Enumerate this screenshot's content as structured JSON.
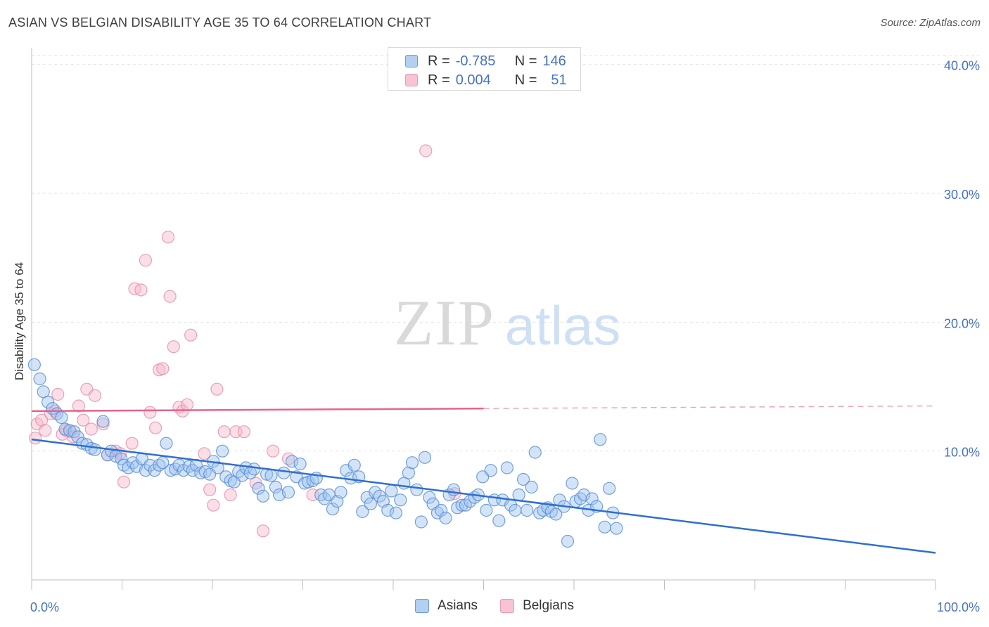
{
  "header": {
    "title": "ASIAN VS BELGIAN DISABILITY AGE 35 TO 64 CORRELATION CHART",
    "source": "Source: ZipAtlas.com"
  },
  "watermark": {
    "zip": "ZIP",
    "atlas": "atlas"
  },
  "legend_top": {
    "r_label": "R =",
    "n_label": "N =",
    "rows": [
      {
        "r": "-0.785",
        "n": "146"
      },
      {
        "r": "0.004",
        "n": "51"
      }
    ]
  },
  "colors": {
    "asian_fill": "#9fc3ef",
    "asian_stroke": "#5b8fd6",
    "asian_line": "#2f6fce",
    "belgian_fill": "#f6b8ca",
    "belgian_stroke": "#e890ab",
    "belgian_line": "#e5648e",
    "tick_label": "#4472c4"
  },
  "chart_data": {
    "type": "scatter",
    "title": "ASIAN VS BELGIAN DISABILITY AGE 35 TO 64 CORRELATION CHART",
    "xlabel": "",
    "ylabel": "Disability Age 35 to 64",
    "xlim": [
      0,
      100
    ],
    "ylim": [
      0,
      42
    ],
    "x_tick_labels": [
      "0.0%",
      "100.0%"
    ],
    "y_ticks": [
      10,
      20,
      30,
      40
    ],
    "y_tick_labels": [
      "10.0%",
      "20.0%",
      "30.0%",
      "40.0%"
    ],
    "grid": true,
    "legend_position": "bottom",
    "series": [
      {
        "name": "Asians",
        "r": -0.785,
        "n": 146,
        "trend": {
          "x": [
            0,
            100
          ],
          "y": [
            10.9,
            2.1
          ],
          "dashed_from": null
        },
        "points": [
          [
            0.3,
            16.7
          ],
          [
            0.9,
            15.6
          ],
          [
            1.3,
            14.6
          ],
          [
            1.8,
            13.8
          ],
          [
            2.3,
            13.3
          ],
          [
            2.8,
            12.9
          ],
          [
            3.3,
            12.6
          ],
          [
            3.7,
            11.7
          ],
          [
            4.2,
            11.6
          ],
          [
            4.7,
            11.5
          ],
          [
            5.1,
            11.1
          ],
          [
            5.6,
            10.6
          ],
          [
            6.1,
            10.5
          ],
          [
            6.6,
            10.2
          ],
          [
            7.0,
            10.1
          ],
          [
            7.9,
            12.3
          ],
          [
            8.4,
            9.7
          ],
          [
            8.8,
            10.0
          ],
          [
            9.3,
            9.6
          ],
          [
            9.9,
            9.4
          ],
          [
            10.2,
            8.9
          ],
          [
            10.7,
            8.7
          ],
          [
            11.2,
            9.1
          ],
          [
            11.6,
            8.8
          ],
          [
            12.2,
            9.4
          ],
          [
            12.6,
            8.5
          ],
          [
            13.1,
            8.9
          ],
          [
            13.6,
            8.5
          ],
          [
            14.1,
            8.9
          ],
          [
            14.5,
            9.1
          ],
          [
            14.9,
            10.6
          ],
          [
            15.4,
            8.5
          ],
          [
            15.9,
            8.6
          ],
          [
            16.3,
            8.9
          ],
          [
            16.8,
            8.5
          ],
          [
            17.4,
            8.8
          ],
          [
            17.8,
            8.5
          ],
          [
            18.2,
            8.9
          ],
          [
            18.7,
            8.3
          ],
          [
            19.2,
            8.4
          ],
          [
            19.7,
            8.2
          ],
          [
            20.1,
            9.2
          ],
          [
            20.6,
            8.7
          ],
          [
            21.1,
            10.0
          ],
          [
            21.5,
            8.0
          ],
          [
            22.0,
            7.7
          ],
          [
            22.4,
            7.6
          ],
          [
            22.9,
            8.4
          ],
          [
            23.3,
            8.1
          ],
          [
            23.7,
            8.7
          ],
          [
            24.2,
            8.3
          ],
          [
            24.6,
            8.6
          ],
          [
            25.1,
            7.1
          ],
          [
            25.6,
            6.5
          ],
          [
            26.0,
            8.2
          ],
          [
            26.5,
            8.1
          ],
          [
            27.0,
            7.2
          ],
          [
            27.4,
            6.6
          ],
          [
            27.9,
            8.3
          ],
          [
            28.4,
            6.8
          ],
          [
            28.8,
            9.2
          ],
          [
            29.3,
            8.0
          ],
          [
            29.7,
            9.0
          ],
          [
            30.2,
            7.5
          ],
          [
            30.6,
            7.6
          ],
          [
            31.1,
            7.7
          ],
          [
            31.5,
            7.9
          ],
          [
            32.0,
            6.6
          ],
          [
            32.4,
            6.3
          ],
          [
            32.9,
            6.6
          ],
          [
            33.3,
            5.5
          ],
          [
            33.8,
            6.1
          ],
          [
            34.2,
            6.8
          ],
          [
            34.8,
            8.5
          ],
          [
            35.3,
            7.9
          ],
          [
            35.7,
            8.9
          ],
          [
            36.2,
            8.0
          ],
          [
            36.6,
            5.3
          ],
          [
            37.1,
            6.4
          ],
          [
            37.5,
            5.9
          ],
          [
            38.0,
            6.8
          ],
          [
            38.5,
            6.5
          ],
          [
            38.9,
            6.1
          ],
          [
            39.4,
            5.4
          ],
          [
            39.8,
            6.9
          ],
          [
            40.3,
            5.2
          ],
          [
            40.8,
            6.2
          ],
          [
            41.2,
            7.5
          ],
          [
            41.7,
            8.3
          ],
          [
            42.1,
            9.1
          ],
          [
            42.6,
            7.0
          ],
          [
            43.1,
            4.5
          ],
          [
            43.5,
            9.5
          ],
          [
            44.0,
            6.4
          ],
          [
            44.4,
            5.9
          ],
          [
            44.9,
            5.2
          ],
          [
            45.3,
            5.4
          ],
          [
            45.8,
            4.8
          ],
          [
            46.2,
            6.6
          ],
          [
            46.7,
            7.0
          ],
          [
            47.1,
            5.6
          ],
          [
            47.6,
            5.8
          ],
          [
            48.0,
            5.8
          ],
          [
            48.5,
            6.1
          ],
          [
            49.0,
            6.4
          ],
          [
            49.4,
            6.6
          ],
          [
            49.9,
            8.0
          ],
          [
            50.3,
            5.4
          ],
          [
            50.8,
            8.5
          ],
          [
            51.2,
            6.2
          ],
          [
            51.7,
            4.6
          ],
          [
            52.1,
            6.2
          ],
          [
            52.6,
            8.7
          ],
          [
            53.0,
            5.8
          ],
          [
            53.5,
            5.4
          ],
          [
            53.9,
            6.6
          ],
          [
            54.4,
            7.8
          ],
          [
            54.8,
            5.4
          ],
          [
            55.3,
            7.2
          ],
          [
            55.7,
            9.9
          ],
          [
            56.2,
            5.2
          ],
          [
            56.6,
            5.4
          ],
          [
            57.1,
            5.6
          ],
          [
            57.5,
            5.3
          ],
          [
            58.0,
            5.1
          ],
          [
            58.4,
            6.2
          ],
          [
            58.9,
            5.7
          ],
          [
            59.3,
            3.0
          ],
          [
            59.8,
            7.5
          ],
          [
            60.2,
            6.1
          ],
          [
            60.7,
            6.3
          ],
          [
            61.1,
            6.6
          ],
          [
            61.6,
            5.4
          ],
          [
            62.0,
            6.3
          ],
          [
            62.5,
            5.7
          ],
          [
            62.9,
            10.9
          ],
          [
            63.4,
            4.1
          ],
          [
            63.9,
            7.1
          ],
          [
            64.3,
            5.2
          ],
          [
            64.7,
            4.0
          ]
        ]
      },
      {
        "name": "Belgians",
        "r": 0.004,
        "n": 51,
        "trend": {
          "x": [
            0,
            100
          ],
          "y": [
            13.1,
            13.5
          ],
          "dashed_from": 50
        },
        "points": [
          [
            0.4,
            11.0
          ],
          [
            0.6,
            12.1
          ],
          [
            1.1,
            12.4
          ],
          [
            1.5,
            11.6
          ],
          [
            2.1,
            12.9
          ],
          [
            2.6,
            13.1
          ],
          [
            2.9,
            14.4
          ],
          [
            3.4,
            11.3
          ],
          [
            3.8,
            11.6
          ],
          [
            4.3,
            11.5
          ],
          [
            4.6,
            11.1
          ],
          [
            5.2,
            13.5
          ],
          [
            5.7,
            12.4
          ],
          [
            6.1,
            14.8
          ],
          [
            6.6,
            11.7
          ],
          [
            7.0,
            14.3
          ],
          [
            7.9,
            12.1
          ],
          [
            8.4,
            9.7
          ],
          [
            9.3,
            10.0
          ],
          [
            9.8,
            9.8
          ],
          [
            10.2,
            7.6
          ],
          [
            11.1,
            10.6
          ],
          [
            11.4,
            22.6
          ],
          [
            12.1,
            22.5
          ],
          [
            12.6,
            24.8
          ],
          [
            13.1,
            13.0
          ],
          [
            13.7,
            11.8
          ],
          [
            14.1,
            16.3
          ],
          [
            14.5,
            16.4
          ],
          [
            15.1,
            26.6
          ],
          [
            15.3,
            22.0
          ],
          [
            15.7,
            18.1
          ],
          [
            16.3,
            13.4
          ],
          [
            16.7,
            13.1
          ],
          [
            17.2,
            13.6
          ],
          [
            17.6,
            19.0
          ],
          [
            19.1,
            9.8
          ],
          [
            19.7,
            7.0
          ],
          [
            20.1,
            5.8
          ],
          [
            20.5,
            14.8
          ],
          [
            21.3,
            11.5
          ],
          [
            22.0,
            6.6
          ],
          [
            22.6,
            11.5
          ],
          [
            23.5,
            11.5
          ],
          [
            24.8,
            7.5
          ],
          [
            25.6,
            3.8
          ],
          [
            26.7,
            10.0
          ],
          [
            28.4,
            9.4
          ],
          [
            31.1,
            6.6
          ],
          [
            43.6,
            33.3
          ],
          [
            46.8,
            6.7
          ]
        ]
      }
    ]
  },
  "legend_bottom": [
    "Asians",
    "Belgians"
  ]
}
